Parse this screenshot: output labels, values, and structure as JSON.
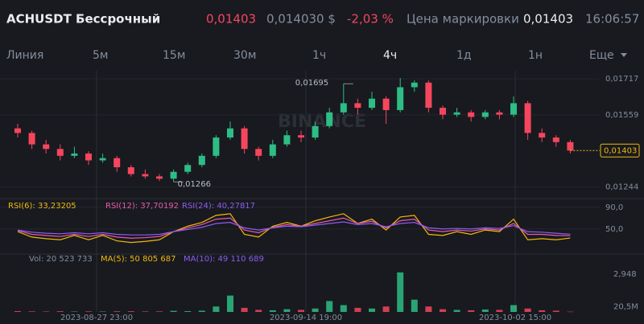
{
  "header": {
    "symbol": "ACHUSDT Бессрочный",
    "last_price": "0,01403",
    "usd_price": "0,014030 $",
    "change": "-2,03 %",
    "mark_label": "Цена маркировки",
    "mark_price": "0,01403",
    "time": "16:06:57"
  },
  "tabs": [
    "Линия",
    "5м",
    "15м",
    "30м",
    "1ч",
    "4ч",
    "1д",
    "1н",
    "Еще"
  ],
  "active_tab": 5,
  "chart_data": [
    {
      "type": "candlestick",
      "watermark": "BINANCE",
      "up_color": "#2ebd85",
      "down_color": "#f6465d",
      "candles": [
        [
          0.015,
          0.0152,
          0.0146,
          0.0148
        ],
        [
          0.0148,
          0.0149,
          0.0141,
          0.0143
        ],
        [
          0.0143,
          0.0145,
          0.0139,
          0.0141
        ],
        [
          0.0141,
          0.0143,
          0.0136,
          0.0138
        ],
        [
          0.0138,
          0.0142,
          0.0137,
          0.0139
        ],
        [
          0.0139,
          0.014,
          0.0134,
          0.0136
        ],
        [
          0.0136,
          0.0139,
          0.0135,
          0.0137
        ],
        [
          0.0137,
          0.0138,
          0.0131,
          0.0133
        ],
        [
          0.0133,
          0.0134,
          0.0129,
          0.013
        ],
        [
          0.013,
          0.0132,
          0.0128,
          0.0129
        ],
        [
          0.0129,
          0.013,
          0.0127,
          0.0128
        ],
        [
          0.0128,
          0.0132,
          0.01266,
          0.0131
        ],
        [
          0.0131,
          0.0135,
          0.013,
          0.0134
        ],
        [
          0.0134,
          0.0139,
          0.0133,
          0.0138
        ],
        [
          0.0138,
          0.0147,
          0.0137,
          0.0146
        ],
        [
          0.0146,
          0.0153,
          0.0145,
          0.015
        ],
        [
          0.015,
          0.0151,
          0.0139,
          0.0141
        ],
        [
          0.0141,
          0.0142,
          0.0136,
          0.0138
        ],
        [
          0.0138,
          0.0145,
          0.0137,
          0.0143
        ],
        [
          0.0143,
          0.0149,
          0.0142,
          0.0147
        ],
        [
          0.0147,
          0.0149,
          0.0144,
          0.0146
        ],
        [
          0.0146,
          0.0153,
          0.0145,
          0.0151
        ],
        [
          0.0151,
          0.0159,
          0.015,
          0.0157
        ],
        [
          0.0157,
          0.01695,
          0.0156,
          0.0161
        ],
        [
          0.0161,
          0.0163,
          0.0156,
          0.0159
        ],
        [
          0.0159,
          0.0166,
          0.0158,
          0.0163
        ],
        [
          0.0163,
          0.0164,
          0.0152,
          0.0158
        ],
        [
          0.0158,
          0.0172,
          0.0157,
          0.0168
        ],
        [
          0.0168,
          0.0171,
          0.0166,
          0.017
        ],
        [
          0.017,
          0.0171,
          0.0157,
          0.0159
        ],
        [
          0.0159,
          0.016,
          0.0154,
          0.0156
        ],
        [
          0.0156,
          0.0159,
          0.0155,
          0.0157
        ],
        [
          0.0157,
          0.0158,
          0.0153,
          0.0155
        ],
        [
          0.0155,
          0.0158,
          0.0154,
          0.0157
        ],
        [
          0.0157,
          0.0158,
          0.0154,
          0.0156
        ],
        [
          0.0156,
          0.0164,
          0.0155,
          0.0161
        ],
        [
          0.0161,
          0.0162,
          0.0145,
          0.0148
        ],
        [
          0.0148,
          0.015,
          0.0144,
          0.0146
        ],
        [
          0.0146,
          0.0147,
          0.0142,
          0.0144
        ],
        [
          0.0144,
          0.0145,
          0.0139,
          0.01403
        ]
      ],
      "ylim": [
        0.012,
        0.01745
      ],
      "yticks": [
        {
          "value": 0.01717,
          "label": "0,01717"
        },
        {
          "value": 0.01559,
          "label": "0,01559"
        },
        {
          "value": 0.01244,
          "label": "0,01244"
        }
      ],
      "last_tick": {
        "value": 0.01403,
        "label": "0,01403"
      },
      "annotations": [
        {
          "value": 0.01695,
          "label": "0,01695"
        },
        {
          "value": 0.01266,
          "label": "0,01266"
        }
      ],
      "x_labels": [
        "2023-08-27 23:00",
        "2023-09-14 19:00",
        "2023-10-02 15:00"
      ]
    },
    {
      "type": "line",
      "ylim": [
        20,
        100
      ],
      "yticks": [
        {
          "value": 90,
          "label": "90,0"
        },
        {
          "value": 50,
          "label": "50,0"
        }
      ],
      "series": [
        {
          "name": "RSI(6): 33,23205",
          "color": "#f0b90b",
          "values": [
            45,
            35,
            32,
            30,
            38,
            30,
            38,
            28,
            25,
            27,
            30,
            45,
            55,
            62,
            75,
            78,
            40,
            35,
            55,
            62,
            55,
            65,
            72,
            78,
            60,
            68,
            48,
            72,
            75,
            40,
            38,
            45,
            40,
            48,
            45,
            68,
            30,
            32,
            30,
            33.23205
          ]
        },
        {
          "name": "RSI(12): 37,70192",
          "color": "#e85aad",
          "values": [
            47,
            40,
            38,
            36,
            40,
            36,
            40,
            35,
            33,
            34,
            36,
            45,
            52,
            58,
            68,
            70,
            48,
            43,
            53,
            58,
            55,
            60,
            65,
            70,
            60,
            64,
            52,
            65,
            68,
            48,
            45,
            48,
            46,
            50,
            48,
            60,
            40,
            40,
            38,
            37.70192
          ]
        },
        {
          "name": "RSI(24): 40,27817",
          "color": "#8d5cf0",
          "values": [
            48,
            44,
            42,
            41,
            43,
            41,
            43,
            40,
            39,
            39,
            40,
            45,
            49,
            53,
            60,
            62,
            52,
            48,
            52,
            55,
            54,
            57,
            60,
            63,
            58,
            60,
            54,
            60,
            62,
            52,
            50,
            51,
            50,
            52,
            51,
            56,
            45,
            44,
            42,
            40.27817
          ]
        }
      ]
    },
    {
      "type": "bar",
      "ylim": [
        0,
        2948
      ],
      "yticks": [
        {
          "value": 2948,
          "label": "2,948"
        },
        {
          "value": 20.5,
          "label": "20,5M"
        }
      ],
      "series": [
        {
          "name": "Vol: 20 523 733",
          "color": "#848e9c",
          "values": [
            60,
            40,
            30,
            50,
            30,
            40,
            30,
            45,
            50,
            35,
            40,
            80,
            60,
            90,
            400,
            1200,
            300,
            150,
            120,
            200,
            150,
            250,
            800,
            500,
            300,
            250,
            400,
            2900,
            900,
            400,
            200,
            150,
            120,
            180,
            150,
            500,
            250,
            120,
            90,
            20.523733
          ]
        }
      ],
      "ma_labels": [
        {
          "text": "MA(5): 50 805 687",
          "color": "#f0b90b"
        },
        {
          "text": "MA(10): 49 110 689",
          "color": "#8d5cf0"
        }
      ]
    }
  ]
}
